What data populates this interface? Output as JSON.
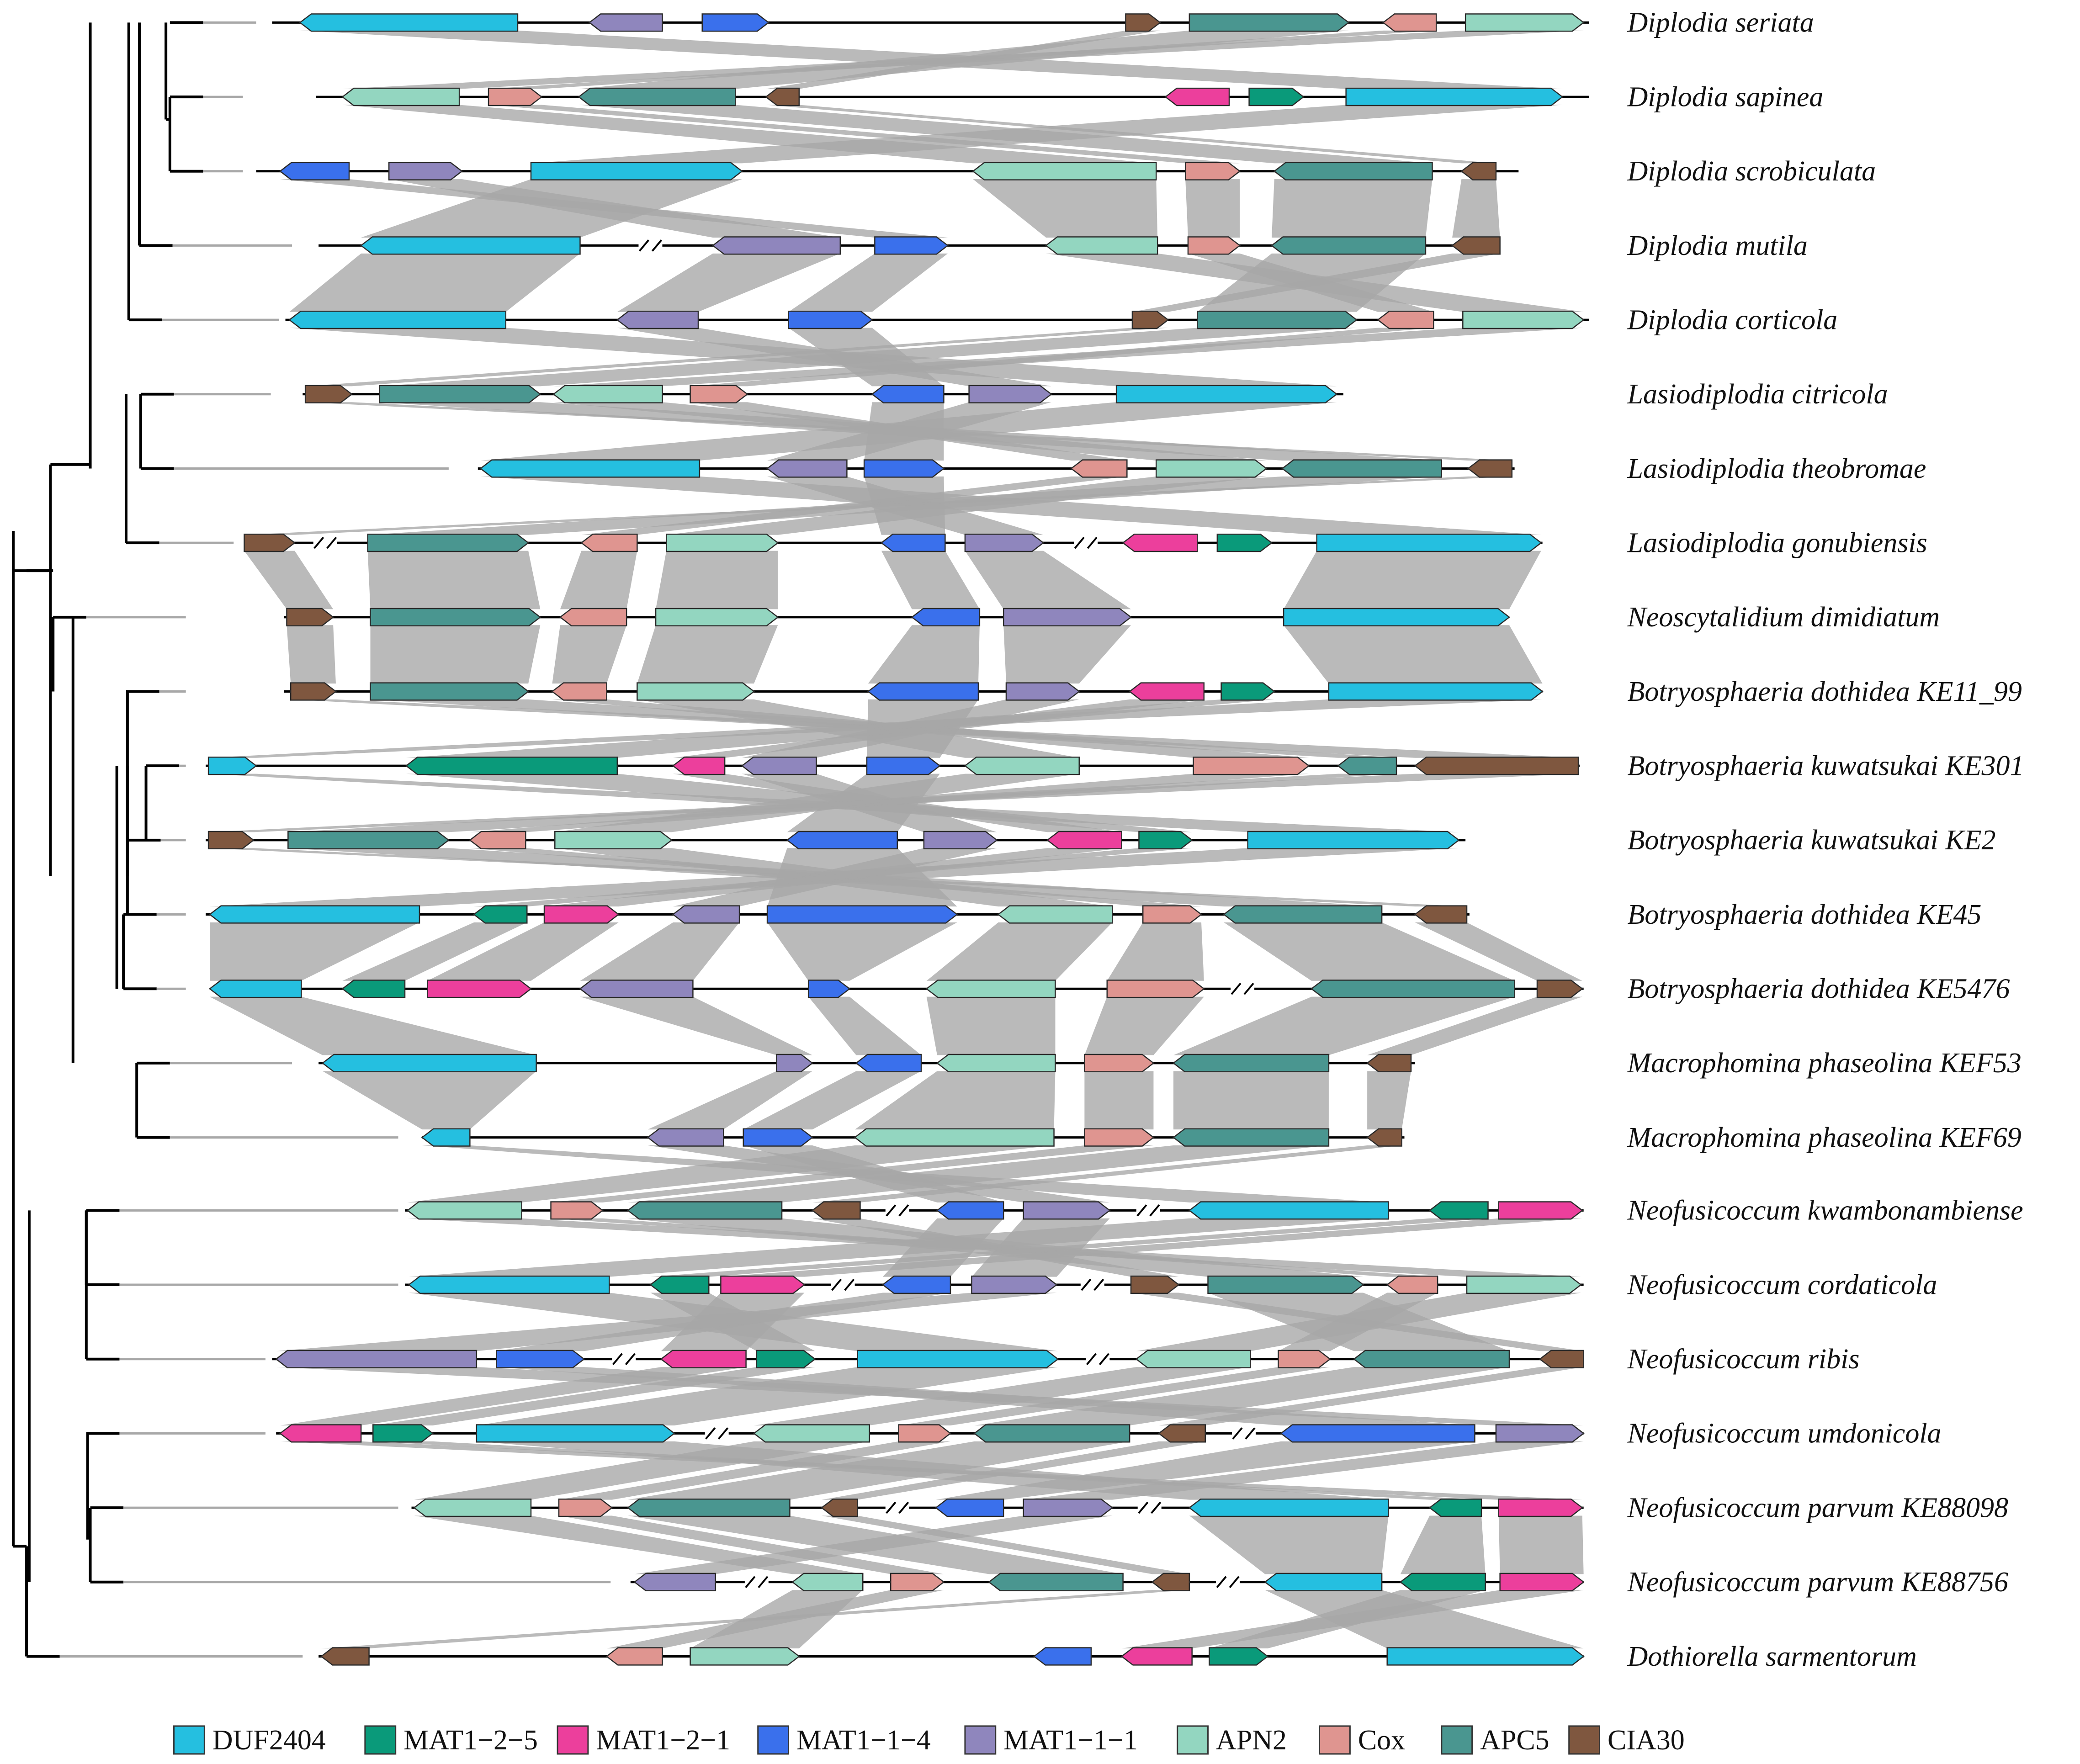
{
  "colors": {
    "DUF2404": "#25bfe0",
    "MAT1-2-5": "#0a9a7a",
    "MAT1-2-1": "#ec3f9c",
    "MAT1-1-4": "#3a70ec",
    "MAT1-1-1": "#8f86bd",
    "APN2": "#93d6c0",
    "Cox": "#df9590",
    "APC5": "#4a9690",
    "CIA30": "#7f573f",
    "synteny": "#a6a6a6",
    "branch": "#000000",
    "branch_ext": "#a8a8a8"
  },
  "legend": [
    {
      "key": "DUF2404",
      "label": "DUF2404"
    },
    {
      "key": "MAT1-2-5",
      "label": "MAT1−2−5"
    },
    {
      "key": "MAT1-2-1",
      "label": "MAT1−2−1"
    },
    {
      "key": "MAT1-1-4",
      "label": "MAT1−1−4"
    },
    {
      "key": "MAT1-1-1",
      "label": "MAT1−1−1"
    },
    {
      "key": "APN2",
      "label": "APN2"
    },
    {
      "key": "Cox",
      "label": "Cox"
    },
    {
      "key": "APC5",
      "label": "APC5"
    },
    {
      "key": "CIA30",
      "label": "CIA30"
    }
  ],
  "tree_order": [
    "Diplodia seriata",
    "Diplodia sapinea",
    "Diplodia scrobiculata",
    "Diplodia mutila",
    "Diplodia corticola",
    "Lasiodiplodia citricola",
    "Lasiodiplodia theobromae",
    "Lasiodiplodia gonubiensis",
    "Neoscytalidium dimidiatum",
    "Botryosphaeria dothidea KE11_99",
    "Botryosphaeria kuwatsukai KE301",
    "Botryosphaeria kuwatsukai KE2",
    "Botryosphaeria dothidea KE45",
    "Botryosphaeria dothidea KE5476",
    "Macrophomina phaseolina KEF53",
    "Macrophomina phaseolina KEF69",
    "Neofusicoccum kwambonambiense",
    "Neofusicoccum cordaticola",
    "Neofusicoccum ribis",
    "Neofusicoccum umdonicola",
    "Neofusicoccum parvum KE88098",
    "Neofusicoccum parvum KE88756",
    "Dothiorella sarmentorum"
  ],
  "tracks": [
    {
      "name": "Diplodia seriata",
      "genes": [
        {
          "g": "DUF2404",
          "dir": "L"
        },
        {
          "g": "MAT1-1-1",
          "dir": "L"
        },
        {
          "g": "MAT1-1-4",
          "dir": "R"
        },
        {
          "g": "CIA30",
          "dir": "R"
        },
        {
          "g": "APC5",
          "dir": "R"
        },
        {
          "g": "Cox",
          "dir": "L"
        },
        {
          "g": "APN2",
          "dir": "R"
        }
      ]
    },
    {
      "name": "Diplodia sapinea",
      "genes": [
        {
          "g": "APN2",
          "dir": "L"
        },
        {
          "g": "Cox",
          "dir": "R"
        },
        {
          "g": "APC5",
          "dir": "L"
        },
        {
          "g": "CIA30",
          "dir": "L"
        },
        {
          "g": "MAT1-2-1",
          "dir": "L"
        },
        {
          "g": "MAT1-2-5",
          "dir": "R"
        },
        {
          "g": "DUF2404",
          "dir": "R"
        }
      ]
    },
    {
      "name": "Diplodia scrobiculata",
      "genes": [
        {
          "g": "MAT1-1-4",
          "dir": "L"
        },
        {
          "g": "MAT1-1-1",
          "dir": "R"
        },
        {
          "g": "DUF2404",
          "dir": "R"
        },
        {
          "g": "APN2",
          "dir": "L"
        },
        {
          "g": "Cox",
          "dir": "R"
        },
        {
          "g": "APC5",
          "dir": "L"
        },
        {
          "g": "CIA30",
          "dir": "L"
        }
      ]
    },
    {
      "name": "Diplodia mutila",
      "genes": [
        {
          "g": "DUF2404",
          "dir": "L"
        },
        {
          "g": "MAT1-1-1",
          "dir": "L"
        },
        {
          "g": "MAT1-1-4",
          "dir": "R"
        },
        {
          "g": "APN2",
          "dir": "L"
        },
        {
          "g": "Cox",
          "dir": "R"
        },
        {
          "g": "APC5",
          "dir": "L"
        },
        {
          "g": "CIA30",
          "dir": "L"
        }
      ]
    },
    {
      "name": "Diplodia corticola",
      "genes": [
        {
          "g": "DUF2404",
          "dir": "L"
        },
        {
          "g": "MAT1-1-1",
          "dir": "L"
        },
        {
          "g": "MAT1-1-4",
          "dir": "R"
        },
        {
          "g": "CIA30",
          "dir": "R"
        },
        {
          "g": "APC5",
          "dir": "R"
        },
        {
          "g": "Cox",
          "dir": "L"
        },
        {
          "g": "APN2",
          "dir": "R"
        }
      ]
    },
    {
      "name": "Lasiodiplodia citricola",
      "genes": [
        {
          "g": "CIA30",
          "dir": "R"
        },
        {
          "g": "APC5",
          "dir": "R"
        },
        {
          "g": "APN2",
          "dir": "L"
        },
        {
          "g": "Cox",
          "dir": "R"
        },
        {
          "g": "MAT1-1-4",
          "dir": "L"
        },
        {
          "g": "MAT1-1-1",
          "dir": "R"
        },
        {
          "g": "DUF2404",
          "dir": "R"
        }
      ]
    },
    {
      "name": "Lasiodiplodia theobromae",
      "genes": [
        {
          "g": "DUF2404",
          "dir": "L"
        },
        {
          "g": "MAT1-1-1",
          "dir": "L"
        },
        {
          "g": "MAT1-1-4",
          "dir": "R"
        },
        {
          "g": "Cox",
          "dir": "L"
        },
        {
          "g": "APN2",
          "dir": "R"
        },
        {
          "g": "APC5",
          "dir": "L"
        },
        {
          "g": "CIA30",
          "dir": "L"
        }
      ]
    },
    {
      "name": "Lasiodiplodia gonubiensis",
      "genes": [
        {
          "g": "CIA30",
          "dir": "R"
        },
        {
          "g": "APC5",
          "dir": "R"
        },
        {
          "g": "Cox",
          "dir": "L"
        },
        {
          "g": "APN2",
          "dir": "R"
        },
        {
          "g": "MAT1-1-4",
          "dir": "L"
        },
        {
          "g": "MAT1-1-1",
          "dir": "R"
        },
        {
          "g": "MAT1-2-1",
          "dir": "L"
        },
        {
          "g": "MAT1-2-5",
          "dir": "R"
        },
        {
          "g": "DUF2404",
          "dir": "R"
        }
      ]
    },
    {
      "name": "Neoscytalidium dimidiatum",
      "genes": [
        {
          "g": "CIA30",
          "dir": "R"
        },
        {
          "g": "APC5",
          "dir": "R"
        },
        {
          "g": "Cox",
          "dir": "L"
        },
        {
          "g": "APN2",
          "dir": "R"
        },
        {
          "g": "MAT1-1-4",
          "dir": "L"
        },
        {
          "g": "MAT1-1-1",
          "dir": "R"
        },
        {
          "g": "DUF2404",
          "dir": "R"
        }
      ]
    },
    {
      "name": "Botryosphaeria dothidea KE11_99",
      "genes": [
        {
          "g": "CIA30",
          "dir": "R"
        },
        {
          "g": "APC5",
          "dir": "R"
        },
        {
          "g": "Cox",
          "dir": "L"
        },
        {
          "g": "APN2",
          "dir": "R"
        },
        {
          "g": "MAT1-1-4",
          "dir": "L"
        },
        {
          "g": "MAT1-1-1",
          "dir": "R"
        },
        {
          "g": "MAT1-2-1",
          "dir": "L"
        },
        {
          "g": "MAT1-2-5",
          "dir": "R"
        },
        {
          "g": "DUF2404",
          "dir": "R"
        }
      ]
    },
    {
      "name": "Botryosphaeria kuwatsukai KE301",
      "genes": [
        {
          "g": "DUF2404",
          "dir": "R"
        },
        {
          "g": "MAT1-2-5",
          "dir": "L"
        },
        {
          "g": "MAT1-2-1",
          "dir": "L"
        },
        {
          "g": "MAT1-1-1",
          "dir": "L"
        },
        {
          "g": "MAT1-1-4",
          "dir": "R"
        },
        {
          "g": "APN2",
          "dir": "L"
        },
        {
          "g": "Cox",
          "dir": "R"
        },
        {
          "g": "APC5",
          "dir": "L"
        },
        {
          "g": "CIA30",
          "dir": "L"
        }
      ]
    },
    {
      "name": "Botryosphaeria kuwatsukai KE2",
      "genes": [
        {
          "g": "CIA30",
          "dir": "R"
        },
        {
          "g": "APC5",
          "dir": "R"
        },
        {
          "g": "Cox",
          "dir": "L"
        },
        {
          "g": "APN2",
          "dir": "R"
        },
        {
          "g": "MAT1-1-4",
          "dir": "L"
        },
        {
          "g": "MAT1-1-1",
          "dir": "R"
        },
        {
          "g": "MAT1-2-1",
          "dir": "L"
        },
        {
          "g": "MAT1-2-5",
          "dir": "R"
        },
        {
          "g": "DUF2404",
          "dir": "R"
        }
      ]
    },
    {
      "name": "Botryosphaeria dothidea KE45",
      "genes": [
        {
          "g": "DUF2404",
          "dir": "L"
        },
        {
          "g": "MAT1-2-5",
          "dir": "L"
        },
        {
          "g": "MAT1-2-1",
          "dir": "R"
        },
        {
          "g": "MAT1-1-1",
          "dir": "L"
        },
        {
          "g": "MAT1-1-4",
          "dir": "R"
        },
        {
          "g": "APN2",
          "dir": "L"
        },
        {
          "g": "Cox",
          "dir": "R"
        },
        {
          "g": "APC5",
          "dir": "L"
        },
        {
          "g": "CIA30",
          "dir": "L"
        }
      ]
    },
    {
      "name": "Botryosphaeria dothidea KE5476",
      "genes": [
        {
          "g": "DUF2404",
          "dir": "L"
        },
        {
          "g": "MAT1-2-5",
          "dir": "L"
        },
        {
          "g": "MAT1-2-1",
          "dir": "R"
        },
        {
          "g": "MAT1-1-1",
          "dir": "L"
        },
        {
          "g": "MAT1-1-4",
          "dir": "R"
        },
        {
          "g": "APN2",
          "dir": "L"
        },
        {
          "g": "Cox",
          "dir": "R"
        },
        {
          "g": "APC5",
          "dir": "L"
        },
        {
          "g": "CIA30",
          "dir": "R"
        }
      ]
    },
    {
      "name": "Macrophomina phaseolina KEF53",
      "genes": [
        {
          "g": "DUF2404",
          "dir": "L"
        },
        {
          "g": "MAT1-1-1",
          "dir": "R"
        },
        {
          "g": "MAT1-1-4",
          "dir": "L"
        },
        {
          "g": "APN2",
          "dir": "L"
        },
        {
          "g": "Cox",
          "dir": "R"
        },
        {
          "g": "APC5",
          "dir": "L"
        },
        {
          "g": "CIA30",
          "dir": "L"
        }
      ]
    },
    {
      "name": "Macrophomina phaseolina KEF69",
      "genes": [
        {
          "g": "DUF2404",
          "dir": "L"
        },
        {
          "g": "MAT1-1-1",
          "dir": "L"
        },
        {
          "g": "MAT1-1-4",
          "dir": "R"
        },
        {
          "g": "APN2",
          "dir": "L"
        },
        {
          "g": "Cox",
          "dir": "R"
        },
        {
          "g": "APC5",
          "dir": "L"
        },
        {
          "g": "CIA30",
          "dir": "L"
        }
      ]
    },
    {
      "name": "Neofusicoccum kwambonambiense",
      "genes": [
        {
          "g": "APN2",
          "dir": "L"
        },
        {
          "g": "Cox",
          "dir": "R"
        },
        {
          "g": "APC5",
          "dir": "L"
        },
        {
          "g": "CIA30",
          "dir": "L"
        },
        {
          "g": "MAT1-1-4",
          "dir": "L"
        },
        {
          "g": "MAT1-1-1",
          "dir": "R"
        },
        {
          "g": "DUF2404",
          "dir": "L"
        },
        {
          "g": "MAT1-2-5",
          "dir": "L"
        },
        {
          "g": "MAT1-2-1",
          "dir": "R"
        }
      ]
    },
    {
      "name": "Neofusicoccum cordaticola",
      "genes": [
        {
          "g": "DUF2404",
          "dir": "L"
        },
        {
          "g": "MAT1-2-5",
          "dir": "L"
        },
        {
          "g": "MAT1-2-1",
          "dir": "R"
        },
        {
          "g": "MAT1-1-4",
          "dir": "L"
        },
        {
          "g": "MAT1-1-1",
          "dir": "R"
        },
        {
          "g": "CIA30",
          "dir": "R"
        },
        {
          "g": "APC5",
          "dir": "R"
        },
        {
          "g": "Cox",
          "dir": "L"
        },
        {
          "g": "APN2",
          "dir": "R"
        }
      ]
    },
    {
      "name": "Neofusicoccum ribis",
      "genes": [
        {
          "g": "MAT1-1-1",
          "dir": "L"
        },
        {
          "g": "MAT1-1-4",
          "dir": "R"
        },
        {
          "g": "MAT1-2-1",
          "dir": "L"
        },
        {
          "g": "MAT1-2-5",
          "dir": "R"
        },
        {
          "g": "DUF2404",
          "dir": "R"
        },
        {
          "g": "APN2",
          "dir": "L"
        },
        {
          "g": "Cox",
          "dir": "R"
        },
        {
          "g": "APC5",
          "dir": "L"
        },
        {
          "g": "CIA30",
          "dir": "L"
        }
      ]
    },
    {
      "name": "Neofusicoccum umdonicola",
      "genes": [
        {
          "g": "MAT1-2-1",
          "dir": "L"
        },
        {
          "g": "MAT1-2-5",
          "dir": "R"
        },
        {
          "g": "DUF2404",
          "dir": "R"
        },
        {
          "g": "APN2",
          "dir": "L"
        },
        {
          "g": "Cox",
          "dir": "R"
        },
        {
          "g": "APC5",
          "dir": "L"
        },
        {
          "g": "CIA30",
          "dir": "L"
        },
        {
          "g": "MAT1-1-4",
          "dir": "L"
        },
        {
          "g": "MAT1-1-1",
          "dir": "R"
        }
      ]
    },
    {
      "name": "Neofusicoccum parvum KE88098",
      "genes": [
        {
          "g": "APN2",
          "dir": "L"
        },
        {
          "g": "Cox",
          "dir": "R"
        },
        {
          "g": "APC5",
          "dir": "L"
        },
        {
          "g": "CIA30",
          "dir": "L"
        },
        {
          "g": "MAT1-1-4",
          "dir": "L"
        },
        {
          "g": "MAT1-1-1",
          "dir": "R"
        },
        {
          "g": "DUF2404",
          "dir": "L"
        },
        {
          "g": "MAT1-2-5",
          "dir": "L"
        },
        {
          "g": "MAT1-2-1",
          "dir": "R"
        }
      ]
    },
    {
      "name": "Neofusicoccum parvum KE88756",
      "genes": [
        {
          "g": "MAT1-1-1",
          "dir": "L"
        },
        {
          "g": "APN2",
          "dir": "L"
        },
        {
          "g": "Cox",
          "dir": "R"
        },
        {
          "g": "APC5",
          "dir": "L"
        },
        {
          "g": "CIA30",
          "dir": "L"
        },
        {
          "g": "DUF2404",
          "dir": "L"
        },
        {
          "g": "MAT1-2-5",
          "dir": "L"
        },
        {
          "g": "MAT1-2-1",
          "dir": "R"
        }
      ]
    },
    {
      "name": "Dothiorella sarmentorum",
      "genes": [
        {
          "g": "CIA30",
          "dir": "L"
        },
        {
          "g": "Cox",
          "dir": "L"
        },
        {
          "g": "APN2",
          "dir": "R"
        },
        {
          "g": "MAT1-1-4",
          "dir": "L"
        },
        {
          "g": "MAT1-2-1",
          "dir": "L"
        },
        {
          "g": "MAT1-2-5",
          "dir": "R"
        },
        {
          "g": "DUF2404",
          "dir": "R"
        }
      ]
    }
  ]
}
